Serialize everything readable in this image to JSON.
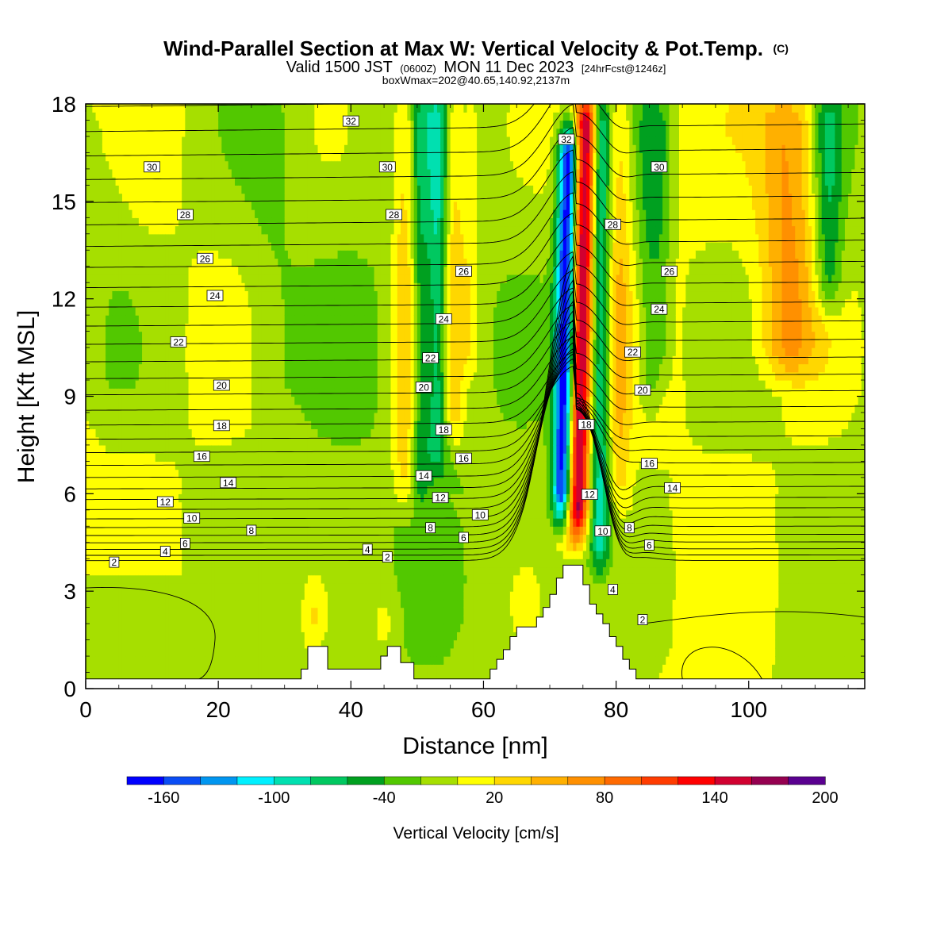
{
  "title": {
    "main": "Wind-Parallel Section at Max W: Vertical Velocity & Pot.Temp.",
    "copyright": "(C)",
    "valid_prefix": "Valid 1500 JST",
    "valid_zulu": "(0600Z)",
    "valid_date": "MON 11 Dec 2023",
    "forecast": "[24hrFcst@1246z]",
    "box_info": "boxWmax=202@40.65,140.92,2137m"
  },
  "chart_data": {
    "type": "heatmap",
    "xlabel": "Distance [nm]",
    "ylabel": "Height [Kft MSL]",
    "xlim": [
      0,
      117.5
    ],
    "ylim": [
      0,
      18
    ],
    "x_ticks": [
      "0",
      "20",
      "40",
      "60",
      "80",
      "100"
    ],
    "y_ticks": [
      "0",
      "3",
      "6",
      "9",
      "12",
      "15",
      "18"
    ],
    "x_tick_values": [
      0,
      20,
      40,
      60,
      80,
      100
    ],
    "y_tick_values": [
      0,
      3,
      6,
      9,
      12,
      15,
      18
    ],
    "colorbar": {
      "title": "Vertical Velocity [cm/s]",
      "labels": [
        "-160",
        "-100",
        "-40",
        "20",
        "80",
        "140",
        "200"
      ],
      "label_values": [
        -160,
        -100,
        -40,
        20,
        80,
        140,
        200
      ],
      "min": -180,
      "step": 20,
      "colors": [
        "#0000ff",
        "#0a4df5",
        "#0096f0",
        "#00f0ff",
        "#00e0b0",
        "#00c860",
        "#00a020",
        "#52c800",
        "#a6df00",
        "#ffff00",
        "#ffd700",
        "#ffb000",
        "#ff9000",
        "#ff6a00",
        "#ff3c00",
        "#ff0000",
        "#d10030",
        "#950050",
        "#5a0090"
      ]
    },
    "terrain": {
      "x": [
        0,
        32.5,
        32.5,
        33.5,
        33.5,
        36.5,
        36.5,
        44.5,
        44.5,
        45.5,
        45.5,
        47.5,
        47.5,
        49.5,
        49.5,
        61,
        61,
        62,
        62,
        63,
        63,
        64,
        64,
        65,
        65,
        68,
        68,
        69,
        69,
        70,
        70,
        71,
        71,
        72,
        72,
        75,
        75,
        76,
        76,
        77,
        77,
        78,
        78,
        79,
        79,
        80,
        80,
        81,
        81,
        82,
        82,
        83,
        83,
        85.5,
        85.5,
        117.5
      ],
      "y": [
        0.3,
        0.3,
        0.6,
        0.6,
        1.3,
        1.3,
        0.6,
        0.6,
        1.0,
        1.0,
        1.3,
        1.3,
        0.8,
        0.8,
        0.3,
        0.3,
        0.6,
        0.6,
        0.9,
        0.9,
        1.2,
        1.2,
        1.6,
        1.6,
        1.9,
        1.9,
        2.2,
        2.2,
        2.5,
        2.5,
        2.9,
        2.9,
        3.4,
        3.4,
        3.8,
        3.8,
        3.2,
        3.2,
        2.6,
        2.6,
        2.3,
        2.3,
        2.0,
        2.0,
        1.6,
        1.6,
        1.3,
        1.3,
        0.9,
        0.9,
        0.6,
        0.6,
        0.3,
        0.3,
        0.3,
        0.3
      ]
    },
    "velocity_features": [
      {
        "x": 48,
        "z0": 5,
        "z1": 18,
        "sx": 1.3,
        "amp": 45
      },
      {
        "x": 50.5,
        "z0": 5,
        "z1": 18,
        "sx": 0.9,
        "amp": -40
      },
      {
        "x": 53,
        "z0": 6,
        "z1": 18,
        "sx": 1.1,
        "amp": -65
      },
      {
        "x": 55.5,
        "z0": 7,
        "z1": 18,
        "sx": 1.1,
        "amp": 45
      },
      {
        "x": 58,
        "z0": 9,
        "z1": 18,
        "sx": 1.0,
        "amp": 28
      },
      {
        "x": 72.2,
        "z0": 4.5,
        "z1": 17,
        "sx": 1.1,
        "amp": -180,
        "tilt": 0.09
      },
      {
        "x": 74.5,
        "z0": 4.0,
        "z1": 18,
        "sx": 1.2,
        "amp": 185,
        "tilt": 0.12
      },
      {
        "x": 77.5,
        "z0": 3.0,
        "z1": 18,
        "sx": 1.1,
        "amp": -85
      },
      {
        "x": 80.5,
        "z0": 5,
        "z1": 18,
        "sx": 1.2,
        "amp": 38
      },
      {
        "x": 85,
        "z0": 8,
        "z1": 18,
        "sx": 1.3,
        "amp": -40
      },
      {
        "x": 87,
        "z0": 9,
        "z1": 18,
        "sx": 1.0,
        "amp": -25
      },
      {
        "x": 106,
        "z0": 9,
        "z1": 18,
        "sx": 3.0,
        "amp": 65
      },
      {
        "x": 112,
        "z0": 11,
        "z1": 18,
        "sx": 1.5,
        "amp": -55
      },
      {
        "x": 4,
        "z0": 8,
        "z1": 18,
        "sx": 3.0,
        "amp": -12
      },
      {
        "x": 28,
        "z0": 8,
        "z1": 18,
        "sx": 3.0,
        "amp": -12
      },
      {
        "x": 34.5,
        "z0": 0.5,
        "z1": 3,
        "sx": 1.2,
        "amp": 30
      },
      {
        "x": 45,
        "z0": 0.5,
        "z1": 2.5,
        "sx": 1.2,
        "amp": 30
      },
      {
        "x": 66,
        "z0": 1,
        "z1": 3,
        "sx": 1.3,
        "amp": 25
      }
    ],
    "theta_contours": {
      "lines_per_label": 2,
      "labels": [
        {
          "text": "2",
          "x": 4.3,
          "z": 3.88
        },
        {
          "text": "4",
          "x": 12,
          "z": 4.21
        },
        {
          "text": "6",
          "x": 15,
          "z": 4.46
        },
        {
          "text": "8",
          "x": 25,
          "z": 4.86
        },
        {
          "text": "10",
          "x": 16,
          "z": 5.24
        },
        {
          "text": "12",
          "x": 12,
          "z": 5.74
        },
        {
          "text": "14",
          "x": 21.5,
          "z": 6.33
        },
        {
          "text": "16",
          "x": 17.5,
          "z": 7.14
        },
        {
          "text": "18",
          "x": 20.5,
          "z": 8.09
        },
        {
          "text": "20",
          "x": 20.5,
          "z": 9.33
        },
        {
          "text": "22",
          "x": 14,
          "z": 10.66
        },
        {
          "text": "24",
          "x": 19.5,
          "z": 12.09
        },
        {
          "text": "26",
          "x": 18,
          "z": 13.23
        },
        {
          "text": "28",
          "x": 15,
          "z": 14.58
        },
        {
          "text": "30",
          "x": 10,
          "z": 16.05
        },
        {
          "text": "32",
          "x": 40,
          "z": 17.46
        },
        {
          "text": "30",
          "x": 45.5,
          "z": 16.05
        },
        {
          "text": "28",
          "x": 46.5,
          "z": 14.58
        },
        {
          "text": "26",
          "x": 57,
          "z": 12.84
        },
        {
          "text": "24",
          "x": 54,
          "z": 11.37
        },
        {
          "text": "22",
          "x": 52,
          "z": 10.17
        },
        {
          "text": "20",
          "x": 51,
          "z": 9.27
        },
        {
          "text": "18",
          "x": 54,
          "z": 7.96
        },
        {
          "text": "16",
          "x": 57,
          "z": 7.08
        },
        {
          "text": "14",
          "x": 51,
          "z": 6.54
        },
        {
          "text": "12",
          "x": 53.5,
          "z": 5.87
        },
        {
          "text": "10",
          "x": 59.5,
          "z": 5.34
        },
        {
          "text": "8",
          "x": 52,
          "z": 4.94
        },
        {
          "text": "6",
          "x": 57,
          "z": 4.64
        },
        {
          "text": "4",
          "x": 42.5,
          "z": 4.28
        },
        {
          "text": "2",
          "x": 45.5,
          "z": 4.04
        },
        {
          "text": "32",
          "x": 72.5,
          "z": 16.9
        },
        {
          "text": "28",
          "x": 79.5,
          "z": 14.28
        },
        {
          "text": "18",
          "x": 75.5,
          "z": 8.12
        },
        {
          "text": "12",
          "x": 76,
          "z": 5.97
        },
        {
          "text": "10",
          "x": 78,
          "z": 4.84
        },
        {
          "text": "8",
          "x": 82,
          "z": 4.94
        },
        {
          "text": "6",
          "x": 85,
          "z": 4.41
        },
        {
          "text": "4",
          "x": 79.5,
          "z": 3.04
        },
        {
          "text": "2",
          "x": 84,
          "z": 2.11
        },
        {
          "text": "30",
          "x": 86.5,
          "z": 16.05
        },
        {
          "text": "26",
          "x": 88,
          "z": 12.84
        },
        {
          "text": "24",
          "x": 86.5,
          "z": 11.67
        },
        {
          "text": "22",
          "x": 82.5,
          "z": 10.35
        },
        {
          "text": "20",
          "x": 84,
          "z": 9.18
        },
        {
          "text": "16",
          "x": 85,
          "z": 6.92
        },
        {
          "text": "14",
          "x": 88.5,
          "z": 6.17
        }
      ]
    }
  }
}
